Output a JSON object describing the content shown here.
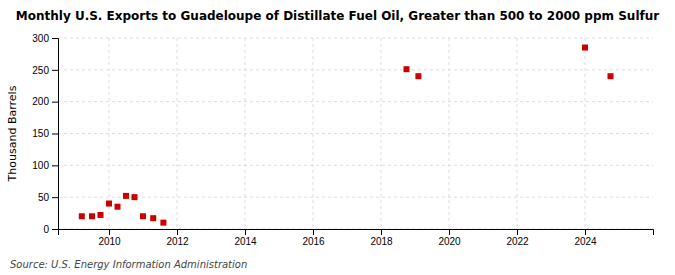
{
  "chart_data": {
    "type": "scatter",
    "title": "Monthly U.S. Exports to Guadeloupe of Distillate Fuel Oil, Greater than 500 to 2000 ppm Sulfur",
    "ylabel": "Thousand Barrels",
    "source": "Source: U.S. Energy Information Administration",
    "x": [
      2009.2,
      2009.5,
      2009.75,
      2010.0,
      2010.25,
      2010.5,
      2010.75,
      2011.0,
      2011.3,
      2011.6,
      2018.75,
      2019.1,
      2024.0,
      2024.75
    ],
    "values": [
      20,
      20,
      22,
      40,
      35,
      52,
      50,
      20,
      17,
      10,
      251,
      240,
      285,
      240
    ],
    "color": "#cc0000",
    "marker": "square",
    "xlim": [
      2008.5,
      2026.0
    ],
    "ylim": [
      0,
      300
    ],
    "xticks": [
      2010,
      2012,
      2014,
      2016,
      2018,
      2020,
      2022,
      2024
    ],
    "yticks": [
      0,
      50,
      100,
      150,
      200,
      250,
      300
    ],
    "grid": true
  }
}
